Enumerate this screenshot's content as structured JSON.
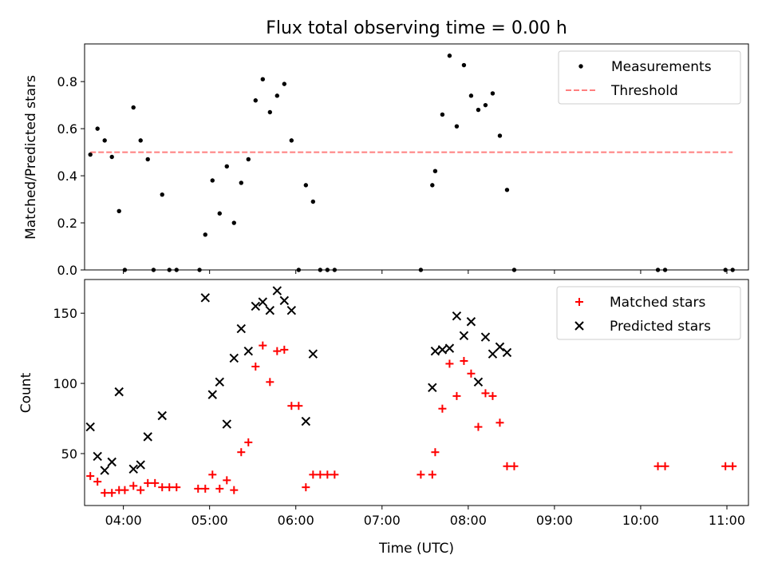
{
  "chart_data": [
    {
      "type": "scatter",
      "title": "Flux total observing time = 0.00 h",
      "xlabel": "",
      "ylabel": "Matched/Predicted stars",
      "xlim": [
        "03:33",
        "11:15"
      ],
      "ylim": [
        0,
        0.96
      ],
      "yticks": [
        0.0,
        0.2,
        0.4,
        0.6,
        0.8
      ],
      "ytick_labels": [
        "0.0",
        "0.2",
        "0.4",
        "0.6",
        "0.8"
      ],
      "xticks": [
        "04:00",
        "05:00",
        "06:00",
        "07:00",
        "08:00",
        "09:00",
        "10:00",
        "11:00"
      ],
      "show_xtick_labels": false,
      "grid": false,
      "legend": {
        "placement": "top-right"
      },
      "series": [
        {
          "name": "Measurements",
          "kind": "scatter",
          "marker": "dot",
          "color": "#000000",
          "points": [
            [
              "03:37",
              0.49
            ],
            [
              "03:42",
              0.6
            ],
            [
              "03:47",
              0.55
            ],
            [
              "03:52",
              0.48
            ],
            [
              "03:57",
              0.25
            ],
            [
              "04:01",
              0.0
            ],
            [
              "04:07",
              0.69
            ],
            [
              "04:12",
              0.55
            ],
            [
              "04:17",
              0.47
            ],
            [
              "04:21",
              0.0
            ],
            [
              "04:27",
              0.32
            ],
            [
              "04:32",
              0.0
            ],
            [
              "04:37",
              0.0
            ],
            [
              "04:53",
              0.0
            ],
            [
              "04:57",
              0.15
            ],
            [
              "05:02",
              0.38
            ],
            [
              "05:07",
              0.24
            ],
            [
              "05:12",
              0.44
            ],
            [
              "05:17",
              0.2
            ],
            [
              "05:22",
              0.37
            ],
            [
              "05:27",
              0.47
            ],
            [
              "05:32",
              0.72
            ],
            [
              "05:37",
              0.81
            ],
            [
              "05:42",
              0.67
            ],
            [
              "05:47",
              0.74
            ],
            [
              "05:52",
              0.79
            ],
            [
              "05:57",
              0.55
            ],
            [
              "06:02",
              0.0
            ],
            [
              "06:07",
              0.36
            ],
            [
              "06:12",
              0.29
            ],
            [
              "06:17",
              0.0
            ],
            [
              "06:22",
              0.0
            ],
            [
              "06:27",
              0.0
            ],
            [
              "07:27",
              0.0
            ],
            [
              "07:35",
              0.36
            ],
            [
              "07:37",
              0.42
            ],
            [
              "07:42",
              0.66
            ],
            [
              "07:47",
              0.91
            ],
            [
              "07:52",
              0.61
            ],
            [
              "07:57",
              0.87
            ],
            [
              "08:02",
              0.74
            ],
            [
              "08:07",
              0.68
            ],
            [
              "08:12",
              0.7
            ],
            [
              "08:17",
              0.75
            ],
            [
              "08:22",
              0.57
            ],
            [
              "08:27",
              0.34
            ],
            [
              "08:32",
              0.0
            ],
            [
              "10:12",
              0.0
            ],
            [
              "10:17",
              0.0
            ],
            [
              "10:59",
              0.0
            ],
            [
              "11:04",
              0.0
            ]
          ]
        },
        {
          "name": "Threshold",
          "kind": "line",
          "style": "dashed",
          "color": "#ff7f7f",
          "points": [
            [
              "03:37",
              0.5
            ],
            [
              "11:04",
              0.5
            ]
          ]
        }
      ]
    },
    {
      "type": "scatter",
      "title": "",
      "xlabel": "Time (UTC)",
      "ylabel": "Count",
      "xlim": [
        "03:33",
        "11:15"
      ],
      "ylim": [
        13,
        174
      ],
      "yticks": [
        50,
        100,
        150
      ],
      "ytick_labels": [
        "50",
        "100",
        "150"
      ],
      "xticks": [
        "04:00",
        "05:00",
        "06:00",
        "07:00",
        "08:00",
        "09:00",
        "10:00",
        "11:00"
      ],
      "xtick_labels": [
        "04:00",
        "05:00",
        "06:00",
        "07:00",
        "08:00",
        "09:00",
        "10:00",
        "11:00"
      ],
      "show_xtick_labels": true,
      "grid": false,
      "legend": {
        "placement": "top-right"
      },
      "series": [
        {
          "name": "Matched stars",
          "kind": "scatter",
          "marker": "plus",
          "color": "#ff0000",
          "points": [
            [
              "03:37",
              34
            ],
            [
              "03:42",
              30
            ],
            [
              "03:47",
              22
            ],
            [
              "03:52",
              22
            ],
            [
              "03:57",
              24
            ],
            [
              "04:01",
              24
            ],
            [
              "04:07",
              27
            ],
            [
              "04:12",
              24
            ],
            [
              "04:17",
              29
            ],
            [
              "04:22",
              29
            ],
            [
              "04:27",
              26
            ],
            [
              "04:32",
              26
            ],
            [
              "04:37",
              26
            ],
            [
              "04:52",
              25
            ],
            [
              "04:57",
              25
            ],
            [
              "05:02",
              35
            ],
            [
              "05:07",
              25
            ],
            [
              "05:12",
              31
            ],
            [
              "05:17",
              24
            ],
            [
              "05:22",
              51
            ],
            [
              "05:27",
              58
            ],
            [
              "05:32",
              112
            ],
            [
              "05:37",
              127
            ],
            [
              "05:42",
              101
            ],
            [
              "05:47",
              123
            ],
            [
              "05:52",
              124
            ],
            [
              "05:57",
              84
            ],
            [
              "06:02",
              84
            ],
            [
              "06:07",
              26
            ],
            [
              "06:12",
              35
            ],
            [
              "06:17",
              35
            ],
            [
              "06:22",
              35
            ],
            [
              "06:27",
              35
            ],
            [
              "07:27",
              35
            ],
            [
              "07:35",
              35
            ],
            [
              "07:37",
              51
            ],
            [
              "07:42",
              82
            ],
            [
              "07:47",
              114
            ],
            [
              "07:52",
              91
            ],
            [
              "07:57",
              116
            ],
            [
              "08:02",
              107
            ],
            [
              "08:07",
              69
            ],
            [
              "08:12",
              93
            ],
            [
              "08:17",
              91
            ],
            [
              "08:22",
              72
            ],
            [
              "08:27",
              41
            ],
            [
              "08:32",
              41
            ],
            [
              "10:12",
              41
            ],
            [
              "10:17",
              41
            ],
            [
              "10:59",
              41
            ],
            [
              "11:04",
              41
            ]
          ]
        },
        {
          "name": "Predicted stars",
          "kind": "scatter",
          "marker": "x",
          "color": "#000000",
          "points": [
            [
              "03:37",
              69
            ],
            [
              "03:42",
              48
            ],
            [
              "03:47",
              38
            ],
            [
              "03:52",
              44
            ],
            [
              "03:57",
              94
            ],
            [
              "04:07",
              39
            ],
            [
              "04:12",
              42
            ],
            [
              "04:17",
              62
            ],
            [
              "04:27",
              77
            ],
            [
              "04:57",
              161
            ],
            [
              "05:02",
              92
            ],
            [
              "05:07",
              101
            ],
            [
              "05:12",
              71
            ],
            [
              "05:17",
              118
            ],
            [
              "05:22",
              139
            ],
            [
              "05:27",
              123
            ],
            [
              "05:32",
              155
            ],
            [
              "05:37",
              158
            ],
            [
              "05:42",
              152
            ],
            [
              "05:47",
              166
            ],
            [
              "05:52",
              159
            ],
            [
              "05:57",
              152
            ],
            [
              "06:07",
              73
            ],
            [
              "06:12",
              121
            ],
            [
              "07:35",
              97
            ],
            [
              "07:37",
              123
            ],
            [
              "07:42",
              124
            ],
            [
              "07:47",
              125
            ],
            [
              "07:52",
              148
            ],
            [
              "07:57",
              134
            ],
            [
              "08:02",
              144
            ],
            [
              "08:07",
              101
            ],
            [
              "08:12",
              133
            ],
            [
              "08:17",
              121
            ],
            [
              "08:22",
              126
            ],
            [
              "08:27",
              122
            ]
          ]
        }
      ]
    }
  ]
}
